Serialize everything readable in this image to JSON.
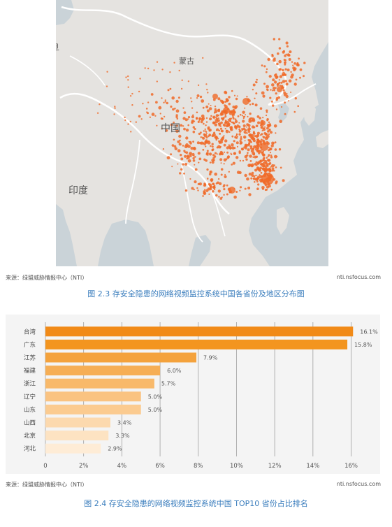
{
  "map": {
    "labels": [
      {
        "id": "mongolia",
        "text": "蒙古"
      },
      {
        "id": "china",
        "text": "中国"
      },
      {
        "id": "india",
        "text": "印度"
      },
      {
        "id": "edge",
        "text": "旦"
      }
    ],
    "colors": {
      "land": "#e5e3e0",
      "water": "#cad3d8",
      "dot": "#f06a28",
      "border": "#ffffff"
    }
  },
  "figure1": {
    "source_left": "来源：绿盟威胁情报中心（NTI）",
    "source_right": "nti.nsfocus.com",
    "caption": "图 2.3 存安全隐患的网络视频监控系统中国各省份及地区分布图"
  },
  "figure2": {
    "source_left": "来源：绿盟威胁情报中心（NTI）",
    "source_right": "nti.nsfocus.com",
    "caption": "图 2.4 存安全隐患的网络视频监控系统中国 TOP10 省份占比排名"
  },
  "chart_data": {
    "type": "bar",
    "orientation": "horizontal",
    "categories": [
      "台湾",
      "广东",
      "江苏",
      "福建",
      "浙江",
      "辽宁",
      "山东",
      "山西",
      "北京",
      "河北"
    ],
    "values": [
      16.1,
      15.8,
      7.9,
      6.0,
      5.7,
      5.0,
      5.0,
      3.4,
      3.3,
      2.9
    ],
    "data_labels": [
      "16.1%",
      "15.8%",
      "7.9%",
      "6.0%",
      "5.7%",
      "5.0%",
      "5.0%",
      "3.4%",
      "3.3%",
      "2.9%"
    ],
    "xticks": [
      0,
      2,
      4,
      6,
      8,
      10,
      12,
      14,
      16
    ],
    "xtick_labels": [
      "0",
      "2%",
      "4%",
      "6%",
      "8%",
      "10%",
      "12%",
      "14%",
      "16%"
    ],
    "xlim": [
      0,
      16.2
    ],
    "grid": true,
    "colors": [
      "#f18a17",
      "#f3951f",
      "#f4a23c",
      "#f6ae55",
      "#f8b96a",
      "#fac381",
      "#fbcb90",
      "#fcd9ae",
      "#fde3c2",
      "#feecd6"
    ]
  }
}
